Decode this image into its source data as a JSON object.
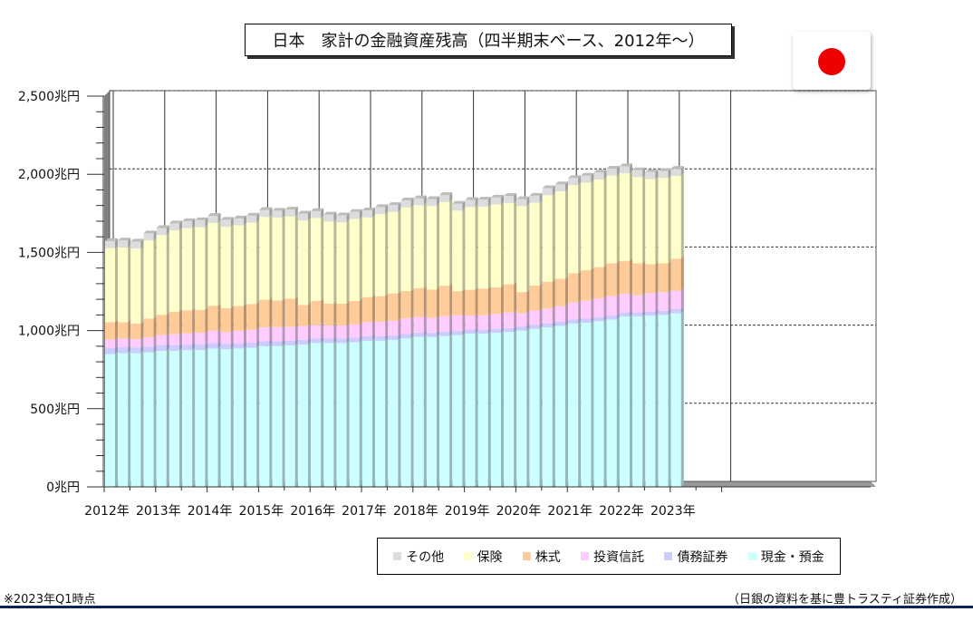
{
  "title": "日本　家計の金融資産残高（四半期末ベース、2012年～）",
  "footnote": "※2023年Q1時点",
  "source": "（日銀の資料を基に豊トラスティ証券作成）",
  "flag_color": "#ee0000",
  "chart_data": {
    "type": "bar",
    "stacked": true,
    "unit": "兆円",
    "ylim": [
      0,
      2500
    ],
    "yticks": [
      "0兆円",
      "500兆円",
      "1,000兆円",
      "1,500兆円",
      "2,000兆円",
      "2,500兆円"
    ],
    "year_labels": [
      "2012年",
      "2013年",
      "2014年",
      "2015年",
      "2016年",
      "2017年",
      "2018年",
      "2019年",
      "2020年",
      "2021年",
      "2022年",
      "2023年"
    ],
    "quarters": [
      "2012Q1",
      "2012Q2",
      "2012Q3",
      "2012Q4",
      "2013Q1",
      "2013Q2",
      "2013Q3",
      "2013Q4",
      "2014Q1",
      "2014Q2",
      "2014Q3",
      "2014Q4",
      "2015Q1",
      "2015Q2",
      "2015Q3",
      "2015Q4",
      "2016Q1",
      "2016Q2",
      "2016Q3",
      "2016Q4",
      "2017Q1",
      "2017Q2",
      "2017Q3",
      "2017Q4",
      "2018Q1",
      "2018Q2",
      "2018Q3",
      "2018Q4",
      "2019Q1",
      "2019Q2",
      "2019Q3",
      "2019Q4",
      "2020Q1",
      "2020Q2",
      "2020Q3",
      "2020Q4",
      "2021Q1",
      "2021Q2",
      "2021Q3",
      "2021Q4",
      "2022Q1",
      "2022Q2",
      "2022Q3",
      "2022Q4",
      "2023Q1"
    ],
    "series": [
      {
        "name": "現金・預金",
        "color": "#ccffff",
        "values": [
          850,
          855,
          855,
          860,
          870,
          870,
          875,
          875,
          885,
          880,
          885,
          890,
          900,
          900,
          905,
          910,
          920,
          920,
          920,
          925,
          935,
          935,
          940,
          950,
          960,
          960,
          965,
          970,
          980,
          980,
          985,
          990,
          1000,
          1010,
          1020,
          1030,
          1045,
          1050,
          1060,
          1070,
          1090,
          1090,
          1095,
          1100,
          1110
        ]
      },
      {
        "name": "債務証券",
        "color": "#ccccff",
        "values": [
          38,
          38,
          37,
          37,
          36,
          36,
          35,
          35,
          34,
          34,
          33,
          33,
          32,
          32,
          31,
          31,
          30,
          30,
          30,
          29,
          29,
          28,
          28,
          28,
          27,
          27,
          27,
          27,
          26,
          26,
          26,
          26,
          26,
          26,
          26,
          26,
          26,
          26,
          26,
          26,
          26,
          26,
          26,
          26,
          27
        ]
      },
      {
        "name": "投資信託",
        "color": "#ffccff",
        "values": [
          55,
          55,
          53,
          60,
          65,
          70,
          72,
          75,
          80,
          75,
          80,
          82,
          90,
          90,
          88,
          88,
          85,
          82,
          82,
          85,
          90,
          92,
          95,
          100,
          100,
          95,
          100,
          100,
          90,
          92,
          95,
          100,
          85,
          92,
          95,
          100,
          110,
          115,
          120,
          125,
          120,
          110,
          118,
          120,
          118
        ]
      },
      {
        "name": "株式",
        "color": "#ffcc99",
        "values": [
          110,
          105,
          100,
          120,
          130,
          145,
          148,
          148,
          160,
          155,
          160,
          165,
          175,
          170,
          180,
          135,
          155,
          140,
          140,
          150,
          160,
          165,
          175,
          175,
          185,
          180,
          195,
          155,
          165,
          170,
          170,
          180,
          135,
          160,
          170,
          175,
          185,
          195,
          200,
          210,
          210,
          205,
          185,
          185,
          205
        ]
      },
      {
        "name": "保険",
        "color": "#ffffcc",
        "values": [
          475,
          478,
          480,
          500,
          510,
          520,
          525,
          528,
          530,
          520,
          515,
          520,
          530,
          530,
          525,
          540,
          530,
          525,
          520,
          525,
          510,
          525,
          520,
          535,
          530,
          535,
          535,
          515,
          530,
          525,
          530,
          520,
          550,
          530,
          555,
          560,
          565,
          560,
          560,
          560,
          560,
          550,
          545,
          545,
          530
        ]
      },
      {
        "name": "その他",
        "color": "#dddddd",
        "values": [
          45,
          45,
          45,
          45,
          45,
          45,
          45,
          45,
          45,
          45,
          45,
          45,
          45,
          45,
          45,
          45,
          45,
          45,
          45,
          45,
          45,
          45,
          45,
          45,
          45,
          45,
          45,
          45,
          45,
          45,
          45,
          45,
          45,
          45,
          45,
          45,
          45,
          45,
          45,
          45,
          45,
          45,
          45,
          45,
          45
        ]
      }
    ],
    "legend_order": [
      "その他",
      "保険",
      "株式",
      "投資信託",
      "債務証券",
      "現金・預金"
    ],
    "legend_position": "bottom-right",
    "grid": true
  }
}
